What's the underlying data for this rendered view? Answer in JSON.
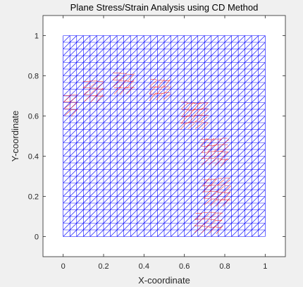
{
  "figure": {
    "background": "#f0f0f0",
    "axes_background": "#ffffff",
    "axes_color": "#262626"
  },
  "chart_data": {
    "type": "mesh",
    "title": "Plane Stress/Strain Analysis using CD Method",
    "xlabel": "X-coordinate",
    "ylabel": "Y-coordinate",
    "xlim": [
      -0.1,
      1.1
    ],
    "ylim": [
      -0.1,
      1.1
    ],
    "xticks": [
      0,
      0.2,
      0.4,
      0.6,
      0.8,
      1
    ],
    "yticks": [
      0,
      0.2,
      0.4,
      0.6,
      0.8,
      1
    ],
    "grid": false,
    "mesh": {
      "domain_x": [
        0,
        1
      ],
      "domain_y": [
        0,
        1
      ],
      "divisions_x": 30,
      "divisions_y": 30,
      "element": "triangle",
      "diagonal": "bottom-left-to-top-right",
      "color": "#0000ff"
    },
    "deformed_mesh": {
      "color": "#ff0000",
      "regions": [
        {
          "x": 0.02,
          "y": 0.65,
          "extent": 0.1
        },
        {
          "x": 0.15,
          "y": 0.72,
          "extent": 0.1
        },
        {
          "x": 0.3,
          "y": 0.76,
          "extent": 0.1
        },
        {
          "x": 0.48,
          "y": 0.73,
          "extent": 0.1
        },
        {
          "x": 0.65,
          "y": 0.6,
          "extent": 0.12
        },
        {
          "x": 0.75,
          "y": 0.42,
          "extent": 0.12
        },
        {
          "x": 0.76,
          "y": 0.22,
          "extent": 0.12
        },
        {
          "x": 0.72,
          "y": 0.05,
          "extent": 0.12
        }
      ]
    }
  }
}
